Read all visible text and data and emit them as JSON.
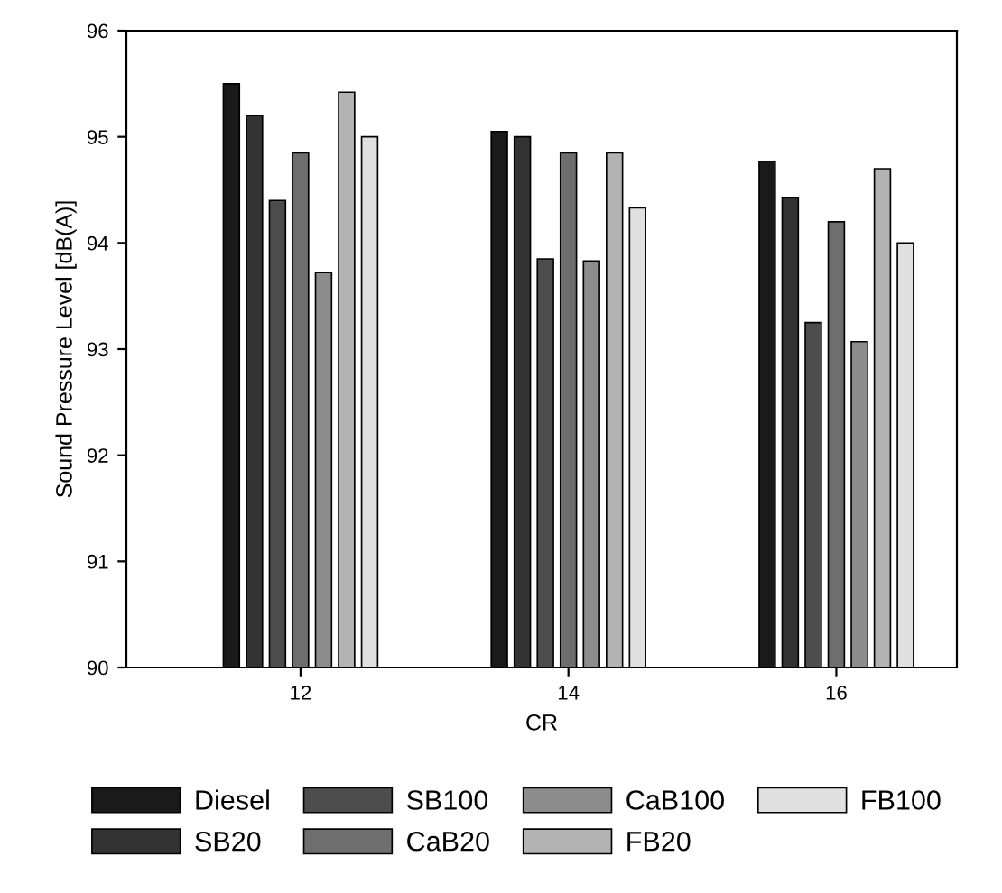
{
  "chart_data": {
    "type": "bar",
    "xlabel": "CR",
    "ylabel": "Sound Pressure Level [dB(A)]",
    "categories": [
      "12",
      "14",
      "16"
    ],
    "series": [
      {
        "name": "Diesel",
        "color": "#1a1a1a",
        "values": [
          95.5,
          95.05,
          94.77
        ]
      },
      {
        "name": "SB20",
        "color": "#333333",
        "values": [
          95.2,
          95.0,
          94.43
        ]
      },
      {
        "name": "SB100",
        "color": "#4d4d4d",
        "values": [
          94.4,
          93.85,
          93.25
        ]
      },
      {
        "name": "CaB20",
        "color": "#6e6e6e",
        "values": [
          94.85,
          94.85,
          94.2
        ]
      },
      {
        "name": "CaB100",
        "color": "#8c8c8c",
        "values": [
          93.72,
          93.83,
          93.07
        ]
      },
      {
        "name": "FB20",
        "color": "#b3b3b3",
        "values": [
          95.42,
          94.85,
          94.7
        ]
      },
      {
        "name": "FB100",
        "color": "#e0e0e0",
        "values": [
          95.0,
          94.33,
          94.0
        ]
      }
    ],
    "ylim": [
      90,
      96
    ],
    "yticks": [
      90,
      91,
      92,
      93,
      94,
      95,
      96
    ],
    "grid": false,
    "legend": "bottom"
  }
}
